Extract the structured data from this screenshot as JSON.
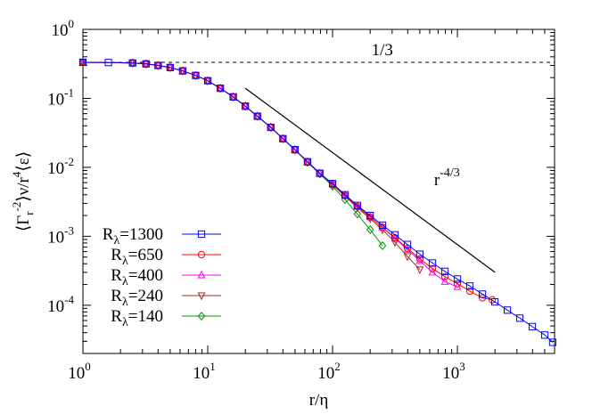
{
  "chart_data": {
    "type": "line",
    "xscale": "log",
    "yscale": "log",
    "xlim": [
      1,
      6000
    ],
    "ylim": [
      2e-05,
      1
    ],
    "xlabel": "r/η",
    "ylabel": "⟨Γr−2⟩ν/r4⟨ε⟩",
    "ylabel_parts": {
      "open": "⟨Γ",
      "sub": "r",
      "sup1": "-2",
      "mid": "⟩ν/r",
      "sup2": "4",
      "close": "⟨ε⟩"
    },
    "x_ticks": [
      {
        "base": "10",
        "exp": "0",
        "value": 1
      },
      {
        "base": "10",
        "exp": "1",
        "value": 10
      },
      {
        "base": "10",
        "exp": "2",
        "value": 100
      },
      {
        "base": "10",
        "exp": "3",
        "value": 1000
      }
    ],
    "y_ticks": [
      {
        "base": "10",
        "exp": "0",
        "value": 1
      },
      {
        "base": "10",
        "exp": "-1",
        "value": 0.1
      },
      {
        "base": "10",
        "exp": "-2",
        "value": 0.01
      },
      {
        "base": "10",
        "exp": "-3",
        "value": 0.001
      },
      {
        "base": "10",
        "exp": "-4",
        "value": 0.0001
      }
    ],
    "legend_position": "bottom-left",
    "reference_lines": [
      {
        "kind": "horizontal-dashed",
        "y": 0.3333,
        "label": "1/3"
      },
      {
        "kind": "power-law",
        "x": [
          20,
          2000
        ],
        "y": [
          0.14,
          0.0003
        ],
        "label_base": "r",
        "label_exp": "-4/3"
      }
    ],
    "series": [
      {
        "name_base": "R",
        "name_sub": "λ",
        "name_value": "=1300",
        "color": "#0000ff",
        "marker": "square",
        "x": [
          1,
          1.6,
          2.5,
          3.2,
          4,
          5,
          6.3,
          8,
          10,
          12.6,
          16,
          20,
          25,
          32,
          40,
          50,
          63,
          79,
          100,
          126,
          158,
          200,
          251,
          316,
          398,
          500,
          631,
          794,
          1000,
          1259,
          1585,
          1995,
          2512,
          3162,
          3981,
          5012,
          5800
        ],
        "y": [
          0.333,
          0.331,
          0.326,
          0.316,
          0.3,
          0.28,
          0.25,
          0.215,
          0.18,
          0.14,
          0.105,
          0.077,
          0.055,
          0.038,
          0.026,
          0.018,
          0.012,
          0.0082,
          0.0058,
          0.004,
          0.0028,
          0.002,
          0.00145,
          0.00105,
          0.00076,
          0.00055,
          0.00041,
          0.00031,
          0.00024,
          0.00019,
          0.000145,
          0.000112,
          8.5e-05,
          6.5e-05,
          4.9e-05,
          3.7e-05,
          2.9e-05
        ]
      },
      {
        "name_base": "R",
        "name_sub": "λ",
        "name_value": "=650",
        "color": "#ff0000",
        "marker": "circle",
        "x": [
          1,
          2.5,
          3.2,
          4,
          5,
          6.3,
          8,
          10,
          12.6,
          16,
          20,
          25,
          32,
          40,
          50,
          63,
          79,
          100,
          126,
          158,
          200,
          251,
          316,
          398,
          500,
          631,
          794,
          1000,
          1259,
          1585,
          1900
        ],
        "y": [
          0.333,
          0.326,
          0.316,
          0.3,
          0.28,
          0.25,
          0.215,
          0.18,
          0.14,
          0.105,
          0.077,
          0.055,
          0.038,
          0.026,
          0.018,
          0.012,
          0.0082,
          0.0057,
          0.0039,
          0.0027,
          0.0019,
          0.00135,
          0.00095,
          0.00067,
          0.00047,
          0.00034,
          0.00026,
          0.000205,
          0.00016,
          0.000128,
          0.00012
        ]
      },
      {
        "name_base": "R",
        "name_sub": "λ",
        "name_value": "=400",
        "color": "#ff00ff",
        "marker": "triangle-up",
        "x": [
          1,
          2.5,
          3.2,
          4,
          5,
          6.3,
          8,
          10,
          12.6,
          16,
          20,
          25,
          32,
          40,
          50,
          63,
          79,
          100,
          126,
          158,
          200,
          251,
          316,
          398,
          500,
          631,
          794,
          1000
        ],
        "y": [
          0.333,
          0.326,
          0.316,
          0.3,
          0.28,
          0.25,
          0.215,
          0.18,
          0.14,
          0.105,
          0.077,
          0.055,
          0.038,
          0.026,
          0.018,
          0.012,
          0.0082,
          0.0057,
          0.0039,
          0.0027,
          0.0019,
          0.00135,
          0.00093,
          0.00064,
          0.00044,
          0.0003,
          0.00022,
          0.000185
        ]
      },
      {
        "name_base": "R",
        "name_sub": "λ",
        "name_value": "=240",
        "color": "#a52a2a",
        "marker": "triangle-down",
        "x": [
          1,
          2.5,
          3.2,
          4,
          5,
          6.3,
          8,
          10,
          12.6,
          16,
          20,
          25,
          32,
          40,
          50,
          63,
          79,
          100,
          126,
          158,
          200,
          251,
          316,
          398,
          500
        ],
        "y": [
          0.333,
          0.326,
          0.316,
          0.3,
          0.28,
          0.25,
          0.215,
          0.18,
          0.14,
          0.105,
          0.077,
          0.055,
          0.038,
          0.026,
          0.018,
          0.012,
          0.0082,
          0.0056,
          0.0038,
          0.0026,
          0.0018,
          0.00125,
          0.00082,
          0.00051,
          0.00033
        ]
      },
      {
        "name_base": "R",
        "name_sub": "λ",
        "name_value": "=140",
        "color": "#009900",
        "marker": "diamond",
        "x": [
          1,
          2.5,
          3.2,
          4,
          5,
          6.3,
          8,
          10,
          12.6,
          16,
          20,
          25,
          32,
          40,
          50,
          63,
          79,
          100,
          126,
          158,
          200,
          251
        ],
        "y": [
          0.333,
          0.326,
          0.316,
          0.3,
          0.28,
          0.25,
          0.215,
          0.18,
          0.14,
          0.105,
          0.077,
          0.055,
          0.038,
          0.026,
          0.018,
          0.0118,
          0.008,
          0.0053,
          0.0034,
          0.0021,
          0.00125,
          0.00073
        ]
      }
    ]
  }
}
